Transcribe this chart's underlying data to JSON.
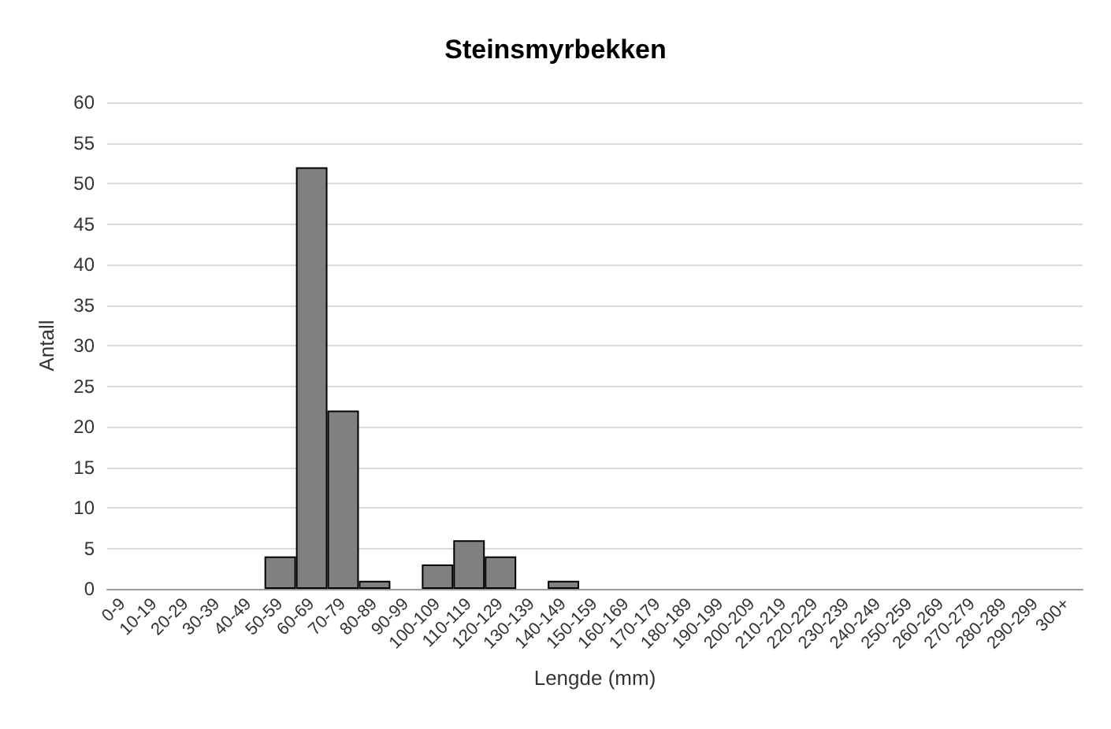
{
  "chart_data": {
    "type": "bar",
    "title": "Steinsmyrbekken",
    "xlabel": "Lengde (mm)",
    "ylabel": "Antall",
    "categories": [
      "0-9",
      "10-19",
      "20-29",
      "30-39",
      "40-49",
      "50-59",
      "60-69",
      "70-79",
      "80-89",
      "90-99",
      "100-109",
      "110-119",
      "120-129",
      "130-139",
      "140-149",
      "150-159",
      "160-169",
      "170-179",
      "180-189",
      "190-199",
      "200-209",
      "210-219",
      "220-229",
      "230-239",
      "240-249",
      "250-259",
      "260-269",
      "270-279",
      "280-289",
      "290-299",
      "300+"
    ],
    "values": [
      0,
      0,
      0,
      0,
      0,
      4,
      52,
      22,
      1,
      0,
      3,
      6,
      4,
      0,
      1,
      0,
      0,
      0,
      0,
      0,
      0,
      0,
      0,
      0,
      0,
      0,
      0,
      0,
      0,
      0,
      0
    ],
    "color": "#808080",
    "ylim": [
      0,
      60
    ],
    "yticks": [
      0,
      5,
      10,
      15,
      20,
      25,
      30,
      35,
      40,
      45,
      50,
      55,
      60
    ],
    "grid": "y"
  }
}
